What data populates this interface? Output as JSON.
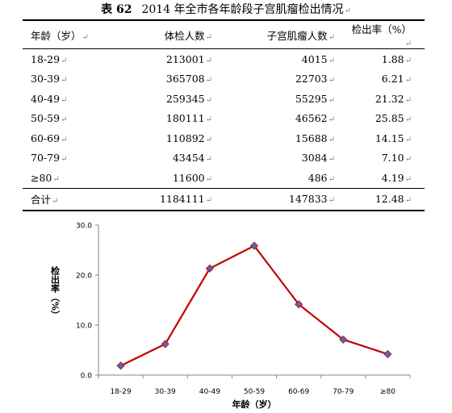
{
  "table": {
    "number": "表 62",
    "caption": "2014 年全市各年龄段子宫肌瘤检出情况",
    "para_mark": "↵",
    "headers": [
      "年龄（岁）",
      "体检人数",
      "子宫肌瘤人数",
      "检出率（%）"
    ],
    "rows": [
      [
        "18-29",
        "213001",
        "4015",
        "1.88"
      ],
      [
        "30-39",
        "365708",
        "22703",
        "6.21"
      ],
      [
        "40-49",
        "259345",
        "55295",
        "21.32"
      ],
      [
        "50-59",
        "180111",
        "46562",
        "25.85"
      ],
      [
        "60-69",
        "110892",
        "15688",
        "14.15"
      ],
      [
        "70-79",
        "43454",
        "3084",
        "7.10"
      ],
      [
        "≥80",
        "11600",
        "486",
        "4.19"
      ]
    ],
    "total": [
      "合计",
      "1184111",
      "147833",
      "12.48"
    ]
  },
  "chart_data": {
    "type": "line",
    "categories": [
      "18-29",
      "30-39",
      "40-49",
      "50-59",
      "60-69",
      "70-79",
      "≥80"
    ],
    "series": [
      {
        "values": [
          1.88,
          6.21,
          21.32,
          25.85,
          14.15,
          7.1,
          4.19
        ]
      }
    ],
    "xlabel": "年龄（岁）",
    "ylabel": "检出率（%）",
    "ylim": [
      0,
      30
    ],
    "yticks": [
      "0.0",
      "10.0",
      "20.0",
      "30.0"
    ],
    "grid": false,
    "line_color": "#c00000",
    "marker_color": "#4f6bb0"
  }
}
